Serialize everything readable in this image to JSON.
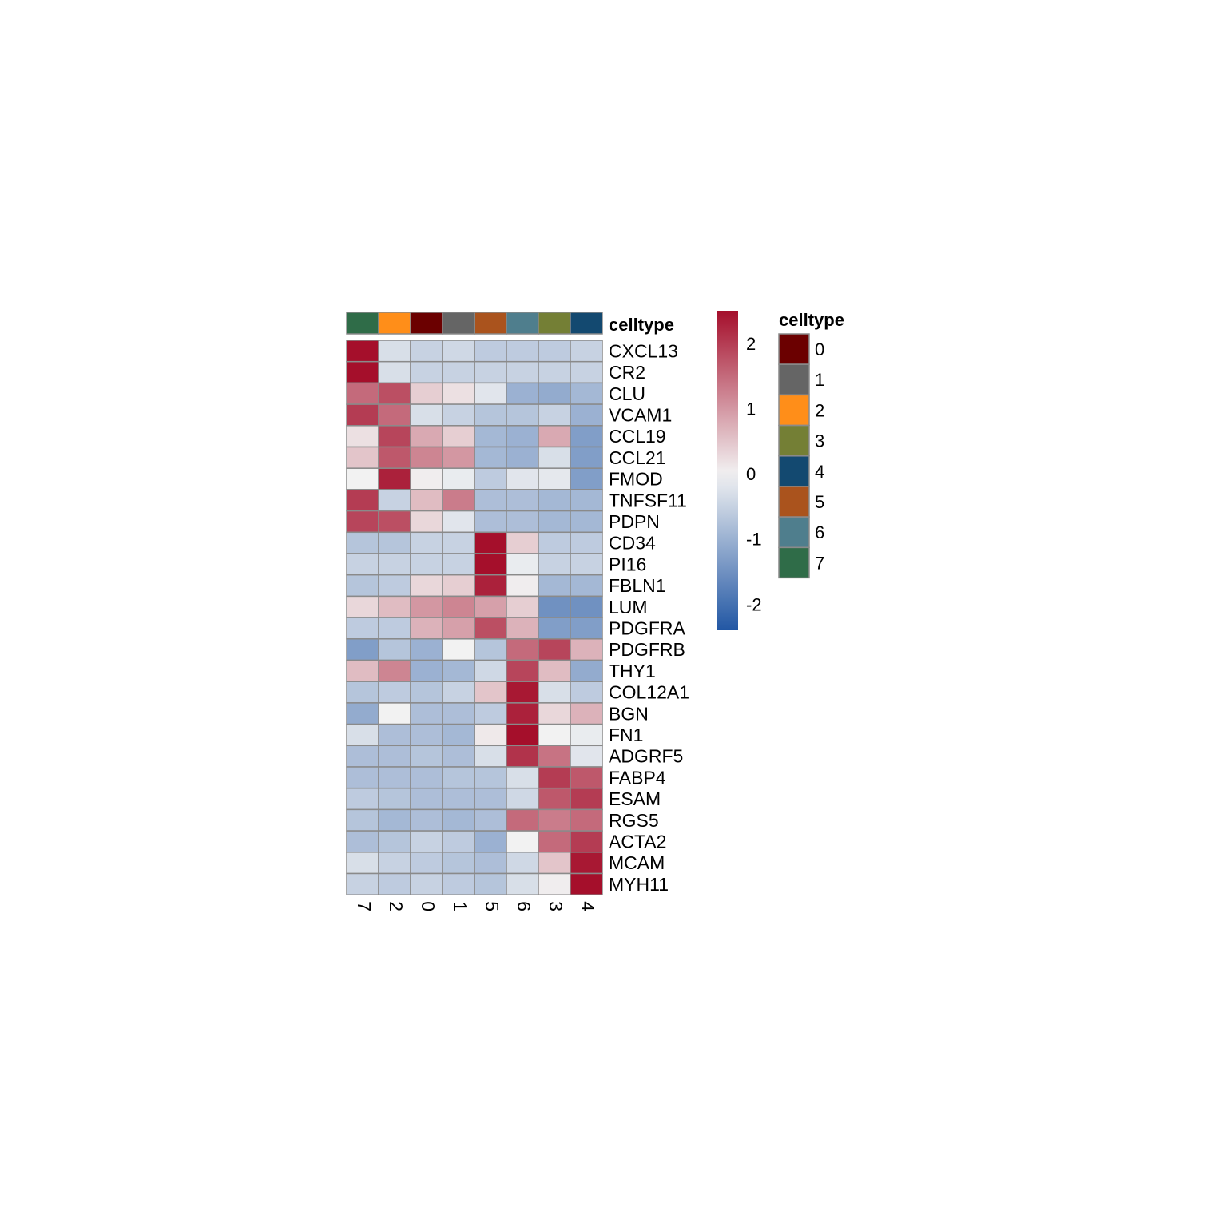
{
  "chart_data": {
    "type": "heatmap",
    "title": "",
    "xlabel": "",
    "ylabel": "",
    "grid": true,
    "annotation_label": "celltype",
    "legend_title": "celltype",
    "legend_placement": "right",
    "colorbar_ticks": [
      "2",
      "1",
      "0",
      "-1",
      "-2"
    ],
    "colorbar_tick_values": [
      2,
      1,
      0,
      -1,
      -2
    ],
    "color_range": [
      -2.4,
      2.5
    ],
    "color_low": "#2257A4",
    "color_mid": "#F2F2F2",
    "color_high": "#A50F2B",
    "columns": [
      "7",
      "2",
      "0",
      "1",
      "5",
      "6",
      "3",
      "4"
    ],
    "rows": [
      "CXCL13",
      "CR2",
      "CLU",
      "VCAM1",
      "CCL19",
      "CCL21",
      "FMOD",
      "TNFSF11",
      "PDPN",
      "CD34",
      "PI16",
      "FBLN1",
      "LUM",
      "PDGFRA",
      "PDGFRB",
      "THY1",
      "COL12A1",
      "BGN",
      "FN1",
      "ADGRF5",
      "FABP4",
      "ESAM",
      "RGS5",
      "ACTA2",
      "MCAM",
      "MYH11"
    ],
    "values": [
      [
        2.5,
        -0.3,
        -0.5,
        -0.4,
        -0.6,
        -0.6,
        -0.6,
        -0.5
      ],
      [
        2.5,
        -0.3,
        -0.5,
        -0.5,
        -0.5,
        -0.5,
        -0.5,
        -0.5
      ],
      [
        1.5,
        1.8,
        0.4,
        0.2,
        -0.2,
        -1.0,
        -1.1,
        -0.9
      ],
      [
        2.0,
        1.5,
        -0.3,
        -0.5,
        -0.7,
        -0.7,
        -0.5,
        -1.0
      ],
      [
        0.2,
        1.9,
        0.8,
        0.4,
        -0.9,
        -1.0,
        0.8,
        -1.3
      ],
      [
        0.5,
        1.7,
        1.2,
        1.0,
        -0.9,
        -1.0,
        -0.3,
        -1.3
      ],
      [
        0.0,
        2.3,
        0.05,
        -0.1,
        -0.6,
        -0.2,
        -0.15,
        -1.3
      ],
      [
        2.0,
        -0.5,
        0.6,
        1.3,
        -0.8,
        -0.8,
        -0.9,
        -0.9
      ],
      [
        1.9,
        1.8,
        0.3,
        -0.2,
        -0.8,
        -0.8,
        -0.9,
        -0.9
      ],
      [
        -0.7,
        -0.7,
        -0.5,
        -0.5,
        2.5,
        0.4,
        -0.6,
        -0.6
      ],
      [
        -0.5,
        -0.5,
        -0.5,
        -0.5,
        2.5,
        -0.1,
        -0.5,
        -0.5
      ],
      [
        -0.7,
        -0.6,
        0.3,
        0.4,
        2.3,
        0.05,
        -0.9,
        -0.9
      ],
      [
        0.3,
        0.6,
        1.0,
        1.2,
        0.9,
        0.4,
        -1.5,
        -1.5
      ],
      [
        -0.6,
        -0.6,
        0.7,
        0.9,
        1.8,
        0.7,
        -1.3,
        -1.3
      ],
      [
        -1.3,
        -0.7,
        -1.0,
        0.0,
        -0.7,
        1.5,
        1.9,
        0.7
      ],
      [
        0.6,
        1.2,
        -1.0,
        -0.9,
        -0.4,
        1.9,
        0.6,
        -1.1
      ],
      [
        -0.7,
        -0.6,
        -0.7,
        -0.5,
        0.5,
        2.4,
        -0.3,
        -0.6
      ],
      [
        -1.1,
        0.0,
        -0.8,
        -0.8,
        -0.6,
        2.3,
        0.3,
        0.7
      ],
      [
        -0.3,
        -0.8,
        -0.8,
        -0.9,
        0.1,
        2.5,
        0.0,
        -0.1
      ],
      [
        -0.8,
        -0.8,
        -0.7,
        -0.8,
        -0.3,
        2.1,
        1.4,
        -0.2
      ],
      [
        -0.8,
        -0.8,
        -0.8,
        -0.7,
        -0.7,
        -0.3,
        2.0,
        1.7
      ],
      [
        -0.6,
        -0.7,
        -0.8,
        -0.8,
        -0.8,
        -0.4,
        1.7,
        2.0
      ],
      [
        -0.7,
        -0.9,
        -0.8,
        -0.9,
        -0.8,
        1.5,
        1.3,
        1.5
      ],
      [
        -0.8,
        -0.7,
        -0.5,
        -0.6,
        -1.0,
        0.0,
        1.5,
        2.0
      ],
      [
        -0.3,
        -0.5,
        -0.6,
        -0.7,
        -0.8,
        -0.4,
        0.5,
        2.4
      ],
      [
        -0.5,
        -0.6,
        -0.5,
        -0.6,
        -0.7,
        -0.3,
        0.05,
        2.5
      ]
    ],
    "annotation_colors": {
      "0": "#6B0000",
      "1": "#656565",
      "2": "#FF8E19",
      "3": "#747F35",
      "4": "#134970",
      "5": "#AA531D",
      "6": "#4F7E8D",
      "7": "#2F6C48"
    },
    "legend_items": [
      "0",
      "1",
      "2",
      "3",
      "4",
      "5",
      "6",
      "7"
    ]
  }
}
